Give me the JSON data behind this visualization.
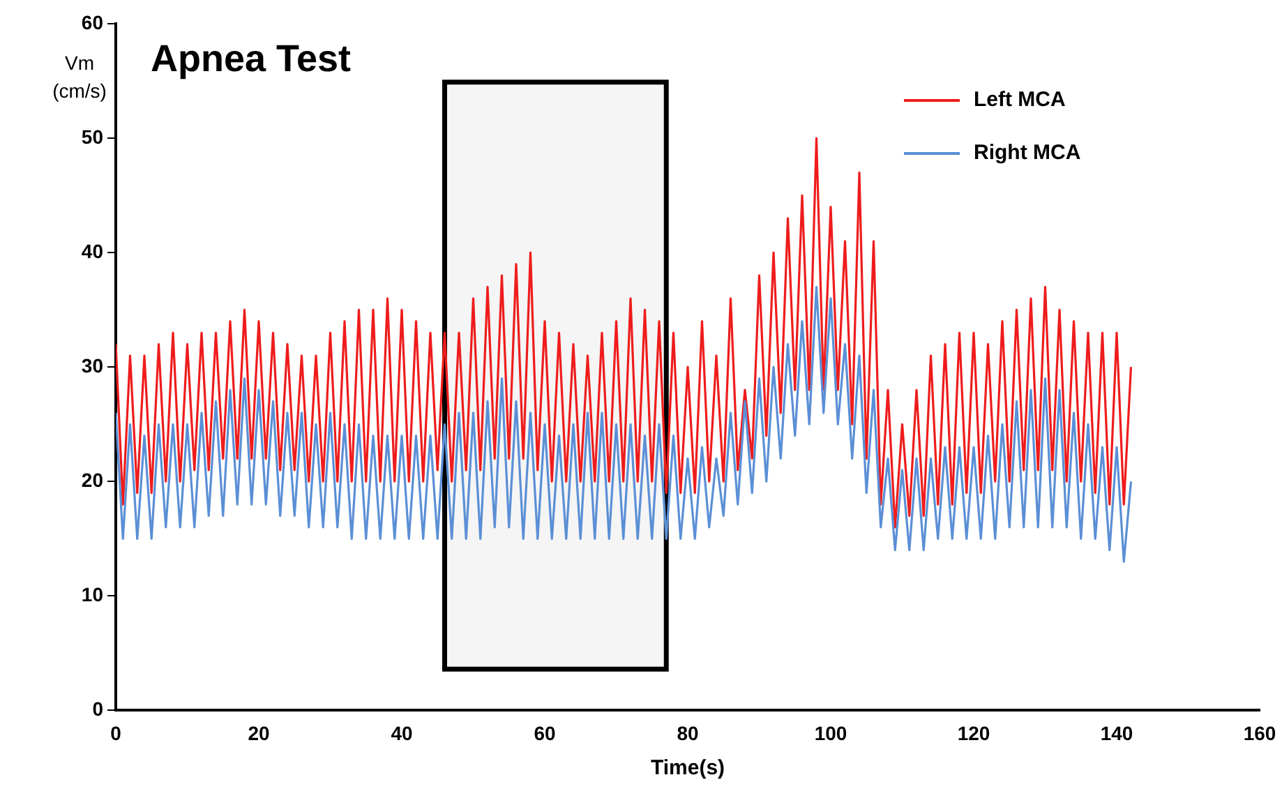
{
  "chart_data": {
    "type": "line",
    "title": "Apnea Test",
    "xlabel": "Time(s)",
    "ylabel": "Vm\n(cm/s)",
    "x": [
      0,
      1,
      2,
      3,
      4,
      5,
      6,
      7,
      8,
      9,
      10,
      11,
      12,
      13,
      14,
      15,
      16,
      17,
      18,
      19,
      20,
      21,
      22,
      23,
      24,
      25,
      26,
      27,
      28,
      29,
      30,
      31,
      32,
      33,
      34,
      35,
      36,
      37,
      38,
      39,
      40,
      41,
      42,
      43,
      44,
      45,
      46,
      47,
      48,
      49,
      50,
      51,
      52,
      53,
      54,
      55,
      56,
      57,
      58,
      59,
      60,
      61,
      62,
      63,
      64,
      65,
      66,
      67,
      68,
      69,
      70,
      71,
      72,
      73,
      74,
      75,
      76,
      77,
      78,
      79,
      80,
      81,
      82,
      83,
      84,
      85,
      86,
      87,
      88,
      89,
      90,
      91,
      92,
      93,
      94,
      95,
      96,
      97,
      98,
      99,
      100,
      101,
      102,
      103,
      104,
      105,
      106,
      107,
      108,
      109,
      110,
      111,
      112,
      113,
      114,
      115,
      116,
      117,
      118,
      119,
      120,
      121,
      122,
      123,
      124,
      125,
      126,
      127,
      128,
      129,
      130,
      131,
      132,
      133,
      134,
      135,
      136,
      137,
      138,
      139,
      140,
      141,
      142
    ],
    "series": [
      {
        "name": "Left MCA",
        "color": "#ee1c1c",
        "values": [
          32,
          18,
          31,
          19,
          31,
          19,
          32,
          20,
          33,
          20,
          32,
          21,
          33,
          21,
          33,
          22,
          34,
          22,
          35,
          22,
          34,
          22,
          33,
          21,
          32,
          21,
          31,
          20,
          31,
          20,
          33,
          20,
          34,
          20,
          35,
          20,
          35,
          20,
          36,
          20,
          35,
          20,
          34,
          20,
          33,
          21,
          33,
          20,
          33,
          21,
          36,
          21,
          37,
          22,
          38,
          22,
          39,
          22,
          40,
          21,
          34,
          20,
          33,
          20,
          32,
          20,
          31,
          20,
          33,
          20,
          34,
          20,
          36,
          20,
          35,
          20,
          34,
          19,
          33,
          19,
          30,
          19,
          34,
          20,
          31,
          20,
          36,
          21,
          28,
          22,
          38,
          24,
          40,
          26,
          43,
          28,
          45,
          28,
          50,
          28,
          44,
          28,
          41,
          25,
          47,
          22,
          41,
          18,
          28,
          16,
          25,
          17,
          28,
          17,
          31,
          18,
          32,
          18,
          33,
          19,
          33,
          19,
          32,
          20,
          34,
          20,
          35,
          21,
          36,
          21,
          37,
          21,
          35,
          20,
          34,
          20,
          33,
          19,
          33,
          18,
          33,
          18,
          30
        ]
      },
      {
        "name": "Right MCA",
        "color": "#5b8fd6",
        "values": [
          26,
          15,
          25,
          15,
          24,
          15,
          25,
          16,
          25,
          16,
          25,
          16,
          26,
          17,
          27,
          17,
          28,
          18,
          29,
          18,
          28,
          18,
          27,
          17,
          26,
          17,
          26,
          16,
          25,
          16,
          26,
          16,
          25,
          15,
          25,
          15,
          24,
          15,
          24,
          15,
          24,
          15,
          24,
          15,
          24,
          15,
          25,
          15,
          26,
          15,
          26,
          15,
          27,
          16,
          29,
          16,
          27,
          15,
          26,
          15,
          25,
          15,
          24,
          15,
          25,
          15,
          26,
          15,
          26,
          15,
          25,
          15,
          25,
          15,
          24,
          15,
          25,
          15,
          24,
          15,
          22,
          15,
          23,
          16,
          22,
          17,
          26,
          18,
          27,
          19,
          29,
          20,
          30,
          22,
          32,
          24,
          34,
          25,
          37,
          26,
          36,
          25,
          32,
          22,
          31,
          19,
          28,
          16,
          22,
          14,
          21,
          14,
          22,
          14,
          22,
          15,
          23,
          15,
          23,
          15,
          23,
          15,
          24,
          15,
          25,
          16,
          27,
          16,
          28,
          16,
          29,
          16,
          28,
          16,
          26,
          15,
          25,
          15,
          23,
          14,
          23,
          13,
          20
        ]
      }
    ],
    "xlim": [
      0,
      160
    ],
    "xticks": [
      0,
      20,
      40,
      60,
      80,
      100,
      120,
      140,
      160
    ],
    "ylim": [
      0,
      60
    ],
    "yticks": [
      0,
      10,
      20,
      30,
      40,
      50,
      60
    ],
    "bands": [
      {
        "axis": "x",
        "from": 46,
        "to": 77,
        "color": "#f5f5f5"
      }
    ],
    "grid": false,
    "legend": "top right",
    "marker": "none",
    "line_style": "solid"
  }
}
